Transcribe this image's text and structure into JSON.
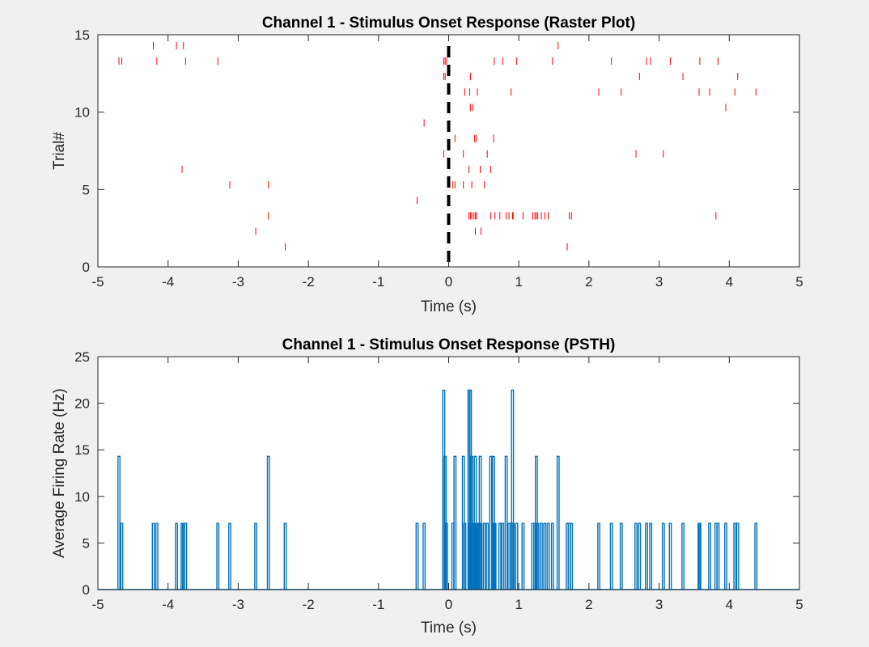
{
  "chart_data": [
    {
      "type": "scatter",
      "title": "Channel 1 - Stimulus Onset Response (Raster Plot)",
      "xlabel": "Time (s)",
      "ylabel": "Trial#",
      "xlim": [
        -5,
        5
      ],
      "ylim": [
        0,
        15
      ],
      "x_ticks": [
        "-5",
        "-4",
        "-3",
        "-2",
        "-1",
        "0",
        "1",
        "2",
        "3",
        "4",
        "5"
      ],
      "y_ticks": [
        "0",
        "5",
        "10",
        "15"
      ],
      "grid": false,
      "marker": "vertical-line",
      "marker_color": "#ff0000",
      "stimulus_onset_x": 0,
      "onset_line_color": "#000000",
      "spikes": [
        {
          "trial": 1,
          "times": [
            -2.33,
            1.69
          ]
        },
        {
          "trial": 2,
          "times": [
            -2.75,
            0.38,
            0.46
          ]
        },
        {
          "trial": 3,
          "times": [
            -2.57,
            0.29,
            0.31,
            0.33,
            0.36,
            0.38,
            0.4,
            0.6,
            0.66,
            0.73,
            0.82,
            0.86,
            0.91,
            0.92,
            1.06,
            1.2,
            1.23,
            1.25,
            1.27,
            1.32,
            1.37,
            1.42,
            1.72,
            1.75,
            3.81
          ]
        },
        {
          "trial": 4,
          "times": [
            -0.45
          ]
        },
        {
          "trial": 5,
          "times": [
            -3.12,
            -2.57,
            0.06,
            0.09,
            0.21,
            0.33,
            0.51
          ]
        },
        {
          "trial": 6,
          "times": [
            -3.8,
            0.29,
            0.45,
            0.6
          ]
        },
        {
          "trial": 7,
          "times": [
            -0.07,
            0.21,
            0.55,
            2.67,
            3.06
          ]
        },
        {
          "trial": 8,
          "times": [
            0.09,
            0.37,
            0.39,
            0.64
          ]
        },
        {
          "trial": 9,
          "times": [
            -0.35
          ]
        },
        {
          "trial": 10,
          "times": [
            0.31,
            0.34,
            3.95
          ]
        },
        {
          "trial": 11,
          "times": [
            0.23,
            0.3,
            0.41,
            0.89,
            2.14,
            2.46,
            3.57,
            3.72,
            4.08,
            4.38
          ]
        },
        {
          "trial": 12,
          "times": [
            -0.07,
            -0.05,
            0.31,
            2.72,
            3.34,
            4.12
          ]
        },
        {
          "trial": 13,
          "times": [
            -4.7,
            -4.66,
            -4.16,
            -3.75,
            -3.29,
            -0.07,
            -0.05,
            -0.03,
            0.65,
            0.77,
            0.97,
            1.48,
            2.32,
            2.82,
            2.88,
            3.16,
            3.58,
            3.84
          ]
        },
        {
          "trial": 14,
          "times": [
            -4.21,
            -3.88,
            -3.78,
            1.56
          ]
        }
      ]
    },
    {
      "type": "line",
      "title": "Channel 1 - Stimulus Onset Response (PSTH)",
      "xlabel": "Time (s)",
      "ylabel": "Average Firing Rate (Hz)",
      "xlim": [
        -5,
        5
      ],
      "ylim": [
        0,
        25
      ],
      "x_ticks": [
        "-5",
        "-4",
        "-3",
        "-2",
        "-1",
        "0",
        "1",
        "2",
        "3",
        "4",
        "5"
      ],
      "y_ticks": [
        "0",
        "5",
        "10",
        "15",
        "20",
        "25"
      ],
      "grid": false,
      "line_color": "#0072bd",
      "baseline": 0,
      "bin_width": 0.005,
      "peaks": [
        {
          "x": -4.7,
          "y": 14.3
        },
        {
          "x": -4.66,
          "y": 7.1
        },
        {
          "x": -4.21,
          "y": 7.1
        },
        {
          "x": -4.16,
          "y": 7.1
        },
        {
          "x": -3.88,
          "y": 7.1
        },
        {
          "x": -3.8,
          "y": 7.1
        },
        {
          "x": -3.78,
          "y": 7.1
        },
        {
          "x": -3.75,
          "y": 7.1
        },
        {
          "x": -3.29,
          "y": 7.1
        },
        {
          "x": -3.12,
          "y": 7.1
        },
        {
          "x": -2.75,
          "y": 7.1
        },
        {
          "x": -2.57,
          "y": 14.3
        },
        {
          "x": -2.33,
          "y": 7.1
        },
        {
          "x": -0.45,
          "y": 7.1
        },
        {
          "x": -0.35,
          "y": 7.1
        },
        {
          "x": -0.07,
          "y": 21.4
        },
        {
          "x": -0.05,
          "y": 14.3
        },
        {
          "x": -0.03,
          "y": 7.1
        },
        {
          "x": 0.06,
          "y": 7.1
        },
        {
          "x": 0.09,
          "y": 14.3
        },
        {
          "x": 0.21,
          "y": 14.3
        },
        {
          "x": 0.23,
          "y": 7.1
        },
        {
          "x": 0.29,
          "y": 21.4
        },
        {
          "x": 0.3,
          "y": 7.1
        },
        {
          "x": 0.31,
          "y": 21.4
        },
        {
          "x": 0.33,
          "y": 14.3
        },
        {
          "x": 0.34,
          "y": 7.1
        },
        {
          "x": 0.36,
          "y": 7.1
        },
        {
          "x": 0.38,
          "y": 14.3
        },
        {
          "x": 0.39,
          "y": 7.1
        },
        {
          "x": 0.4,
          "y": 7.1
        },
        {
          "x": 0.41,
          "y": 7.1
        },
        {
          "x": 0.45,
          "y": 14.3
        },
        {
          "x": 0.46,
          "y": 7.1
        },
        {
          "x": 0.51,
          "y": 7.1
        },
        {
          "x": 0.55,
          "y": 7.1
        },
        {
          "x": 0.6,
          "y": 14.3
        },
        {
          "x": 0.64,
          "y": 14.3
        },
        {
          "x": 0.65,
          "y": 7.1
        },
        {
          "x": 0.66,
          "y": 7.1
        },
        {
          "x": 0.73,
          "y": 7.1
        },
        {
          "x": 0.77,
          "y": 7.1
        },
        {
          "x": 0.82,
          "y": 14.3
        },
        {
          "x": 0.86,
          "y": 7.1
        },
        {
          "x": 0.89,
          "y": 7.1
        },
        {
          "x": 0.91,
          "y": 21.4
        },
        {
          "x": 0.92,
          "y": 7.1
        },
        {
          "x": 0.97,
          "y": 7.1
        },
        {
          "x": 1.06,
          "y": 7.1
        },
        {
          "x": 1.2,
          "y": 7.1
        },
        {
          "x": 1.23,
          "y": 7.1
        },
        {
          "x": 1.25,
          "y": 14.3
        },
        {
          "x": 1.27,
          "y": 7.1
        },
        {
          "x": 1.32,
          "y": 7.1
        },
        {
          "x": 1.37,
          "y": 7.1
        },
        {
          "x": 1.42,
          "y": 7.1
        },
        {
          "x": 1.48,
          "y": 7.1
        },
        {
          "x": 1.56,
          "y": 14.3
        },
        {
          "x": 1.69,
          "y": 7.1
        },
        {
          "x": 1.72,
          "y": 7.1
        },
        {
          "x": 1.75,
          "y": 7.1
        },
        {
          "x": 2.14,
          "y": 7.1
        },
        {
          "x": 2.32,
          "y": 7.1
        },
        {
          "x": 2.46,
          "y": 7.1
        },
        {
          "x": 2.67,
          "y": 7.1
        },
        {
          "x": 2.72,
          "y": 7.1
        },
        {
          "x": 2.82,
          "y": 7.1
        },
        {
          "x": 2.88,
          "y": 7.1
        },
        {
          "x": 3.06,
          "y": 7.1
        },
        {
          "x": 3.16,
          "y": 7.1
        },
        {
          "x": 3.34,
          "y": 7.1
        },
        {
          "x": 3.57,
          "y": 7.1
        },
        {
          "x": 3.58,
          "y": 7.1
        },
        {
          "x": 3.72,
          "y": 7.1
        },
        {
          "x": 3.81,
          "y": 7.1
        },
        {
          "x": 3.84,
          "y": 7.1
        },
        {
          "x": 3.95,
          "y": 7.1
        },
        {
          "x": 4.08,
          "y": 7.1
        },
        {
          "x": 4.12,
          "y": 7.1
        },
        {
          "x": 4.38,
          "y": 7.1
        }
      ]
    }
  ]
}
